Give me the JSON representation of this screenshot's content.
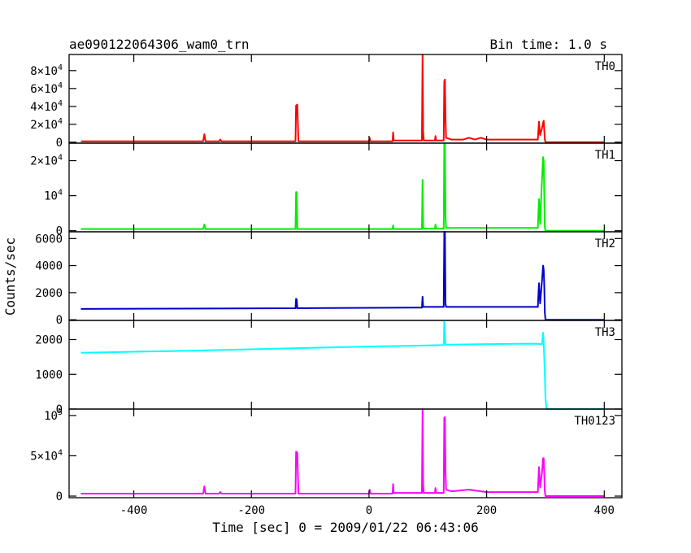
{
  "header": {
    "title": "ae090122064306_wam0_trn",
    "bin_time": "Bin time: 1.0 s"
  },
  "axes": {
    "xlabel": "Time [sec] 0 = 2009/01/22 06:43:06",
    "ylabel": "Counts/sec"
  },
  "colors": {
    "TH0": "#ff0000",
    "TH1": "#00ee00",
    "TH2": "#0000cc",
    "TH3": "#00ffff",
    "TH0123": "#ff00ff"
  },
  "chart_data": {
    "type": "line",
    "xlim": [
      -510,
      430
    ],
    "x_ticks": [
      -400,
      -200,
      0,
      200,
      400
    ],
    "panels": [
      {
        "name": "TH0",
        "ylim": [
          -1000,
          98000
        ],
        "y_ticks": [
          0,
          20000,
          40000,
          60000,
          80000
        ],
        "y_tick_labels": [
          "0",
          "2×10^4",
          "4×10^4",
          "6×10^4",
          "8×10^4"
        ],
        "points": [
          [
            -490,
            1000
          ],
          [
            -282,
            1000
          ],
          [
            -280,
            9000
          ],
          [
            -278,
            1000
          ],
          [
            -255,
            1000
          ],
          [
            -253,
            3000
          ],
          [
            -251,
            1000
          ],
          [
            -125,
            1000
          ],
          [
            -124,
            41000
          ],
          [
            -122,
            42000
          ],
          [
            -120,
            1000
          ],
          [
            0,
            1000
          ],
          [
            1,
            5000
          ],
          [
            2,
            1000
          ],
          [
            40,
            1000
          ],
          [
            41,
            11000
          ],
          [
            42,
            2000
          ],
          [
            90,
            2000
          ],
          [
            91,
            98000
          ],
          [
            92,
            12000
          ],
          [
            93,
            2000
          ],
          [
            112,
            2000
          ],
          [
            113,
            7000
          ],
          [
            114,
            2000
          ],
          [
            127,
            2000
          ],
          [
            128,
            68000
          ],
          [
            129,
            70000
          ],
          [
            130,
            28000
          ],
          [
            131,
            5000
          ],
          [
            140,
            3000
          ],
          [
            160,
            3000
          ],
          [
            170,
            5000
          ],
          [
            180,
            3000
          ],
          [
            190,
            5000
          ],
          [
            200,
            3000
          ],
          [
            240,
            3000
          ],
          [
            260,
            3000
          ],
          [
            287,
            3000
          ],
          [
            289,
            23000
          ],
          [
            291,
            8000
          ],
          [
            294,
            15000
          ],
          [
            296,
            22000
          ],
          [
            297,
            24000
          ],
          [
            299,
            3000
          ],
          [
            300,
            0
          ],
          [
            400,
            0
          ]
        ]
      },
      {
        "name": "TH1",
        "ylim": [
          -300,
          25000
        ],
        "y_ticks": [
          0,
          10000,
          20000
        ],
        "y_tick_labels": [
          "0",
          "10^4",
          "2×10^4"
        ],
        "points": [
          [
            -490,
            500
          ],
          [
            -282,
            500
          ],
          [
            -280,
            1800
          ],
          [
            -278,
            500
          ],
          [
            -125,
            500
          ],
          [
            -124,
            11000
          ],
          [
            -123,
            11000
          ],
          [
            -122,
            500
          ],
          [
            40,
            500
          ],
          [
            41,
            1500
          ],
          [
            42,
            500
          ],
          [
            90,
            500
          ],
          [
            91,
            14500
          ],
          [
            92,
            1000
          ],
          [
            93,
            600
          ],
          [
            112,
            600
          ],
          [
            113,
            1800
          ],
          [
            114,
            600
          ],
          [
            127,
            600
          ],
          [
            128,
            25000
          ],
          [
            129,
            25000
          ],
          [
            130,
            4000
          ],
          [
            131,
            800
          ],
          [
            287,
            800
          ],
          [
            289,
            9000
          ],
          [
            291,
            2000
          ],
          [
            294,
            14000
          ],
          [
            296,
            21000
          ],
          [
            297,
            20000
          ],
          [
            299,
            1000
          ],
          [
            300,
            0
          ],
          [
            400,
            0
          ]
        ]
      },
      {
        "name": "TH2",
        "ylim": [
          -50,
          6500
        ],
        "y_ticks": [
          0,
          2000,
          4000,
          6000
        ],
        "y_tick_labels": [
          "0",
          "2000",
          "4000",
          "6000"
        ],
        "points": [
          [
            -490,
            800
          ],
          [
            -125,
            850
          ],
          [
            -124,
            1550
          ],
          [
            -123,
            1500
          ],
          [
            -122,
            850
          ],
          [
            90,
            900
          ],
          [
            91,
            1700
          ],
          [
            92,
            950
          ],
          [
            127,
            950
          ],
          [
            128,
            6500
          ],
          [
            129,
            6500
          ],
          [
            130,
            1200
          ],
          [
            131,
            950
          ],
          [
            287,
            950
          ],
          [
            289,
            2700
          ],
          [
            291,
            1200
          ],
          [
            294,
            2800
          ],
          [
            296,
            4000
          ],
          [
            297,
            3700
          ],
          [
            298,
            2500
          ],
          [
            299,
            500
          ],
          [
            300,
            0
          ],
          [
            400,
            0
          ]
        ]
      },
      {
        "name": "TH3",
        "ylim": [
          0,
          2550
        ],
        "y_ticks": [
          0,
          1000,
          2000
        ],
        "y_tick_labels": [
          "0",
          "1000",
          "2000"
        ],
        "points": [
          [
            -490,
            1620
          ],
          [
            -400,
            1650
          ],
          [
            -300,
            1680
          ],
          [
            -200,
            1720
          ],
          [
            -100,
            1760
          ],
          [
            0,
            1800
          ],
          [
            100,
            1830
          ],
          [
            127,
            1840
          ],
          [
            128,
            2550
          ],
          [
            130,
            1850
          ],
          [
            200,
            1870
          ],
          [
            280,
            1880
          ],
          [
            294,
            1870
          ],
          [
            296,
            2200
          ],
          [
            297,
            1900
          ],
          [
            299,
            1000
          ],
          [
            300,
            300
          ],
          [
            302,
            0
          ],
          [
            400,
            0
          ]
        ]
      },
      {
        "name": "TH0123",
        "ylim": [
          -2000,
          108000
        ],
        "y_ticks": [
          0,
          50000,
          100000
        ],
        "y_tick_labels": [
          "0",
          "5×10^4",
          "10^5"
        ],
        "points": [
          [
            -490,
            3000
          ],
          [
            -282,
            3000
          ],
          [
            -280,
            12000
          ],
          [
            -278,
            3000
          ],
          [
            -255,
            3000
          ],
          [
            -253,
            5000
          ],
          [
            -251,
            3000
          ],
          [
            -125,
            3000
          ],
          [
            -124,
            55000
          ],
          [
            -122,
            54000
          ],
          [
            -120,
            3000
          ],
          [
            0,
            3000
          ],
          [
            1,
            8000
          ],
          [
            2,
            3000
          ],
          [
            40,
            3000
          ],
          [
            41,
            15000
          ],
          [
            42,
            4000
          ],
          [
            90,
            4000
          ],
          [
            91,
            108000
          ],
          [
            92,
            15000
          ],
          [
            93,
            4000
          ],
          [
            112,
            4000
          ],
          [
            113,
            10000
          ],
          [
            114,
            4000
          ],
          [
            127,
            4000
          ],
          [
            128,
            97000
          ],
          [
            129,
            98000
          ],
          [
            130,
            32000
          ],
          [
            131,
            8000
          ],
          [
            140,
            6000
          ],
          [
            170,
            8000
          ],
          [
            200,
            5000
          ],
          [
            260,
            5000
          ],
          [
            287,
            5000
          ],
          [
            289,
            36000
          ],
          [
            291,
            11000
          ],
          [
            294,
            28000
          ],
          [
            296,
            47000
          ],
          [
            297,
            47000
          ],
          [
            299,
            6000
          ],
          [
            300,
            0
          ],
          [
            400,
            0
          ]
        ]
      }
    ]
  }
}
